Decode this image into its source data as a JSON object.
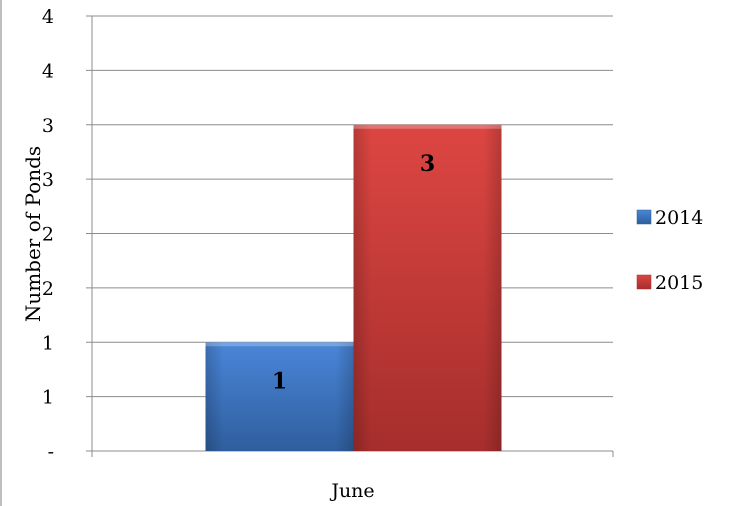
{
  "chart_data": {
    "type": "bar",
    "categories": [
      "June"
    ],
    "series": [
      {
        "name": "2014",
        "values": [
          1
        ],
        "color": "#3E76C6"
      },
      {
        "name": "2015",
        "values": [
          3
        ],
        "color": "#C93838"
      }
    ],
    "data_labels": [
      "1",
      "3"
    ],
    "ylabel": "Number of Ponds",
    "xlabel": "",
    "ylim": [
      0,
      4
    ],
    "yticks": [
      {
        "value": 0,
        "label": "-"
      },
      {
        "value": 0.5,
        "label": "1"
      },
      {
        "value": 1,
        "label": "1"
      },
      {
        "value": 1.5,
        "label": "2"
      },
      {
        "value": 2,
        "label": "2"
      },
      {
        "value": 2.5,
        "label": "3"
      },
      {
        "value": 3,
        "label": "3"
      },
      {
        "value": 3.5,
        "label": "4"
      }
    ],
    "grid": true,
    "legend": "right"
  }
}
